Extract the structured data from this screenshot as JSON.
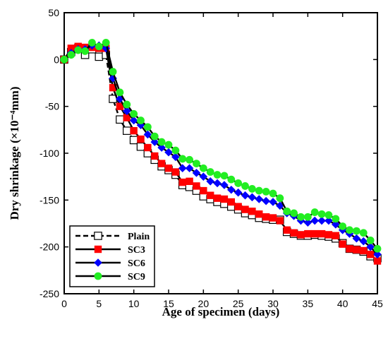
{
  "chart_data": {
    "type": "line",
    "title": "",
    "xlabel": "Age of specimen (days)",
    "ylabel": "Dry shrinkage (×10⁻⁴mm)",
    "xlim": [
      0,
      45
    ],
    "ylim": [
      -250,
      50
    ],
    "xticks": [
      0,
      5,
      10,
      15,
      20,
      25,
      30,
      35,
      40,
      45
    ],
    "yticks": [
      -250,
      -200,
      -150,
      -100,
      -50,
      0,
      50
    ],
    "grid": false,
    "legend_position": "bottom-left",
    "series": [
      {
        "name": "Plain",
        "color": "#000000",
        "line": "dashed",
        "marker": "open-square",
        "x": [
          0,
          1,
          2,
          3,
          4,
          5,
          6,
          7,
          8,
          9,
          10,
          11,
          12,
          13,
          14,
          15,
          16,
          17,
          18,
          19,
          20,
          21,
          22,
          23,
          24,
          25,
          26,
          27,
          28,
          29,
          30,
          31,
          32,
          33,
          34,
          35,
          36,
          37,
          38,
          39,
          40,
          41,
          42,
          43,
          44,
          45
        ],
        "y": [
          0,
          8,
          12,
          5,
          11,
          3,
          5,
          -42,
          -64,
          -76,
          -86,
          -93,
          -100,
          -107,
          -114,
          -118,
          -123,
          -134,
          -136,
          -140,
          -146,
          -149,
          -152,
          -154,
          -157,
          -160,
          -164,
          -166,
          -169,
          -170,
          -171,
          -171,
          -184,
          -186,
          -188,
          -188,
          -187,
          -188,
          -189,
          -191,
          -196,
          -202,
          -203,
          -205,
          -210,
          -212
        ]
      },
      {
        "name": "SC3",
        "color": "#ff0000",
        "line": "solid",
        "marker": "filled-square",
        "x": [
          0,
          1,
          2,
          3,
          4,
          5,
          6,
          7,
          8,
          9,
          10,
          11,
          12,
          13,
          14,
          15,
          16,
          17,
          18,
          19,
          20,
          21,
          22,
          23,
          24,
          25,
          26,
          27,
          28,
          29,
          30,
          31,
          32,
          33,
          34,
          35,
          36,
          37,
          38,
          39,
          40,
          41,
          42,
          43,
          44,
          45
        ],
        "y": [
          0,
          12,
          14,
          13,
          13,
          12,
          12,
          -30,
          -50,
          -62,
          -76,
          -85,
          -94,
          -103,
          -111,
          -116,
          -120,
          -131,
          -130,
          -135,
          -140,
          -145,
          -148,
          -149,
          -152,
          -157,
          -160,
          -162,
          -165,
          -168,
          -169,
          -172,
          -182,
          -185,
          -187,
          -186,
          -186,
          -186,
          -187,
          -188,
          -197,
          -202,
          -203,
          -204,
          -208,
          -215
        ]
      },
      {
        "name": "SC6",
        "color": "#0000ff",
        "line": "solid",
        "marker": "filled-diamond",
        "x": [
          0,
          1,
          2,
          3,
          4,
          5,
          6,
          7,
          8,
          9,
          10,
          11,
          12,
          13,
          14,
          15,
          16,
          17,
          18,
          19,
          20,
          21,
          22,
          23,
          24,
          25,
          26,
          27,
          28,
          29,
          30,
          31,
          32,
          33,
          34,
          35,
          36,
          37,
          38,
          39,
          40,
          41,
          42,
          43,
          44,
          45
        ],
        "y": [
          0,
          7,
          11,
          11,
          15,
          15,
          12,
          -20,
          -42,
          -55,
          -65,
          -70,
          -80,
          -88,
          -94,
          -99,
          -104,
          -116,
          -116,
          -121,
          -125,
          -130,
          -132,
          -134,
          -139,
          -142,
          -145,
          -147,
          -149,
          -151,
          -152,
          -156,
          -164,
          -167,
          -172,
          -174,
          -172,
          -172,
          -172,
          -176,
          -182,
          -186,
          -191,
          -194,
          -200,
          -208
        ]
      },
      {
        "name": "SC9",
        "color": "#22ee22",
        "line": "solid",
        "marker": "filled-circle",
        "x": [
          0,
          1,
          2,
          3,
          4,
          5,
          6,
          7,
          8,
          9,
          10,
          11,
          12,
          13,
          14,
          15,
          16,
          17,
          18,
          19,
          20,
          21,
          22,
          23,
          24,
          25,
          26,
          27,
          28,
          29,
          30,
          31,
          32,
          33,
          34,
          35,
          36,
          37,
          38,
          39,
          40,
          41,
          42,
          43,
          44,
          45
        ],
        "y": [
          0,
          5,
          10,
          9,
          18,
          14,
          18,
          -13,
          -35,
          -48,
          -58,
          -65,
          -72,
          -82,
          -88,
          -91,
          -97,
          -106,
          -107,
          -111,
          -116,
          -120,
          -123,
          -124,
          -128,
          -132,
          -135,
          -138,
          -140,
          -141,
          -143,
          -148,
          -162,
          -164,
          -168,
          -168,
          -163,
          -165,
          -166,
          -170,
          -178,
          -182,
          -183,
          -185,
          -193,
          -202
        ]
      }
    ]
  }
}
